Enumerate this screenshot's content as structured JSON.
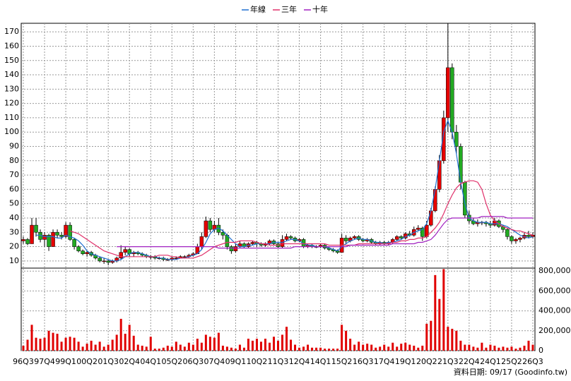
{
  "chart_data": {
    "type": "candlestick",
    "legend": "top",
    "grid": true,
    "footer": "資料日期: 09/17 (Goodinfo.tw)",
    "up_color": "#e60000",
    "down_color": "#22aa22",
    "categories": [
      "96Q3",
      null,
      null,
      null,
      null,
      "97Q4",
      null,
      null,
      null,
      null,
      "99Q1",
      null,
      null,
      null,
      null,
      "00Q2",
      null,
      null,
      null,
      null,
      "01Q3",
      null,
      null,
      null,
      null,
      "02Q4",
      null,
      null,
      null,
      null,
      "04Q1",
      null,
      null,
      null,
      null,
      "05Q2",
      null,
      null,
      null,
      null,
      "06Q3",
      null,
      null,
      null,
      null,
      "07Q4",
      null,
      null,
      null,
      null,
      "09Q1",
      null,
      null,
      null,
      null,
      "10Q2",
      null,
      null,
      null,
      null,
      "11Q3",
      null,
      null,
      null,
      null,
      "12Q4",
      null,
      null,
      null,
      null,
      "14Q1",
      null,
      null,
      null,
      null,
      "15Q2",
      null,
      null,
      null,
      null,
      "16Q3",
      null,
      null,
      null,
      null,
      "17Q4",
      null,
      null,
      null,
      null,
      "19Q1",
      null,
      null,
      null,
      null,
      "20Q2",
      null,
      null,
      null,
      null,
      "21Q3",
      null,
      null,
      null,
      null,
      "22Q4",
      null,
      null,
      null,
      null,
      "24Q1",
      null,
      null,
      null,
      null,
      "25Q2",
      null,
      null,
      null,
      null,
      "26Q3"
    ],
    "candles": [
      [
        24,
        27,
        22,
        25
      ],
      [
        25,
        26,
        21,
        22
      ],
      [
        22,
        40,
        22,
        35
      ],
      [
        35,
        40,
        27,
        30
      ],
      [
        30,
        32,
        23,
        25
      ],
      [
        25,
        30,
        20,
        28
      ],
      [
        28,
        29,
        17,
        20
      ],
      [
        20,
        32,
        20,
        30
      ],
      [
        30,
        32,
        26,
        28
      ],
      [
        28,
        30,
        25,
        27
      ],
      [
        27,
        37,
        26,
        35
      ],
      [
        35,
        37,
        24,
        25
      ],
      [
        25,
        26,
        18,
        20
      ],
      [
        20,
        21,
        16,
        17
      ],
      [
        17,
        18,
        14,
        15
      ],
      [
        15,
        17,
        13,
        16
      ],
      [
        16,
        17,
        13,
        14
      ],
      [
        14,
        15,
        11,
        12
      ],
      [
        12,
        13,
        9,
        10
      ],
      [
        10,
        12,
        8,
        10
      ],
      [
        10,
        11,
        7,
        9
      ],
      [
        9,
        11,
        8,
        10
      ],
      [
        10,
        13,
        9,
        12
      ],
      [
        12,
        21,
        11,
        16
      ],
      [
        16,
        20,
        14,
        18
      ],
      [
        18,
        19,
        13,
        15
      ],
      [
        15,
        17,
        13,
        16
      ],
      [
        16,
        17,
        14,
        15
      ],
      [
        15,
        16,
        13,
        14
      ],
      [
        14,
        15,
        12,
        13
      ],
      [
        13,
        14,
        11,
        13
      ],
      [
        13,
        14,
        11,
        12
      ],
      [
        12,
        13,
        11,
        12
      ],
      [
        12,
        13,
        10,
        11
      ],
      [
        11,
        12,
        10,
        11
      ],
      [
        11,
        13,
        10,
        12
      ],
      [
        12,
        13,
        11,
        12
      ],
      [
        12,
        14,
        12,
        13
      ],
      [
        13,
        14,
        12,
        13
      ],
      [
        13,
        15,
        12,
        14
      ],
      [
        14,
        16,
        13,
        15
      ],
      [
        15,
        22,
        15,
        20
      ],
      [
        20,
        30,
        18,
        27
      ],
      [
        27,
        41,
        26,
        38
      ],
      [
        38,
        40,
        30,
        32
      ],
      [
        32,
        38,
        30,
        35
      ],
      [
        35,
        40,
        28,
        30
      ],
      [
        30,
        32,
        25,
        28
      ],
      [
        28,
        29,
        18,
        20
      ],
      [
        20,
        21,
        15,
        17
      ],
      [
        17,
        22,
        16,
        20
      ],
      [
        20,
        24,
        19,
        22
      ],
      [
        22,
        23,
        19,
        20
      ],
      [
        20,
        23,
        19,
        22
      ],
      [
        22,
        24,
        21,
        23
      ],
      [
        23,
        24,
        20,
        22
      ],
      [
        22,
        23,
        20,
        21
      ],
      [
        21,
        23,
        20,
        22
      ],
      [
        22,
        25,
        21,
        24
      ],
      [
        24,
        25,
        21,
        22
      ],
      [
        22,
        23,
        19,
        20
      ],
      [
        20,
        28,
        19,
        25
      ],
      [
        25,
        29,
        24,
        27
      ],
      [
        27,
        28,
        25,
        26
      ],
      [
        26,
        27,
        23,
        24
      ],
      [
        24,
        26,
        23,
        25
      ],
      [
        25,
        26,
        19,
        20
      ],
      [
        20,
        22,
        19,
        21
      ],
      [
        21,
        22,
        19,
        20
      ],
      [
        20,
        21,
        19,
        20
      ],
      [
        20,
        22,
        19,
        21
      ],
      [
        21,
        22,
        18,
        19
      ],
      [
        19,
        20,
        17,
        18
      ],
      [
        18,
        19,
        16,
        17
      ],
      [
        17,
        18,
        15,
        16
      ],
      [
        16,
        29,
        16,
        26
      ],
      [
        26,
        28,
        22,
        24
      ],
      [
        24,
        27,
        23,
        26
      ],
      [
        26,
        28,
        25,
        27
      ],
      [
        27,
        28,
        24,
        25
      ],
      [
        25,
        26,
        23,
        24
      ],
      [
        24,
        26,
        23,
        25
      ],
      [
        25,
        26,
        22,
        23
      ],
      [
        23,
        24,
        21,
        22
      ],
      [
        22,
        24,
        21,
        23
      ],
      [
        23,
        24,
        21,
        22
      ],
      [
        22,
        24,
        21,
        23
      ],
      [
        23,
        26,
        22,
        25
      ],
      [
        25,
        28,
        24,
        27
      ],
      [
        27,
        28,
        25,
        26
      ],
      [
        26,
        30,
        25,
        29
      ],
      [
        29,
        31,
        27,
        28
      ],
      [
        28,
        34,
        27,
        32
      ],
      [
        32,
        35,
        31,
        33
      ],
      [
        33,
        34,
        24,
        27
      ],
      [
        27,
        38,
        26,
        35
      ],
      [
        35,
        47,
        34,
        45
      ],
      [
        45,
        62,
        44,
        60
      ],
      [
        60,
        84,
        58,
        80
      ],
      [
        80,
        115,
        78,
        110
      ],
      [
        110,
        176,
        100,
        145
      ],
      [
        145,
        148,
        95,
        100
      ],
      [
        100,
        105,
        85,
        90
      ],
      [
        90,
        92,
        60,
        65
      ],
      [
        65,
        66,
        40,
        42
      ],
      [
        42,
        45,
        36,
        38
      ],
      [
        38,
        40,
        35,
        36
      ],
      [
        36,
        39,
        34,
        37
      ],
      [
        37,
        38,
        35,
        37
      ],
      [
        37,
        38,
        34,
        36
      ],
      [
        36,
        38,
        33,
        35
      ],
      [
        35,
        40,
        34,
        38
      ],
      [
        38,
        39,
        33,
        34
      ],
      [
        34,
        35,
        30,
        32
      ],
      [
        32,
        33,
        25,
        27
      ],
      [
        27,
        28,
        22,
        24
      ],
      [
        24,
        26,
        22,
        25
      ],
      [
        25,
        27,
        23,
        26
      ],
      [
        26,
        30,
        25,
        28
      ],
      [
        28,
        31,
        26,
        27
      ],
      [
        27,
        30,
        26,
        28
      ]
    ],
    "ylim": [
      5,
      176
    ],
    "yticks": [
      10,
      20,
      30,
      40,
      50,
      60,
      70,
      80,
      90,
      100,
      110,
      120,
      130,
      140,
      150,
      160,
      170
    ],
    "series": [
      {
        "name": "年線",
        "color": "#1f6fd0",
        "values": [
          null,
          null,
          null,
          28,
          28,
          27,
          27,
          27,
          26,
          26,
          28,
          27,
          26,
          24,
          21,
          17,
          15,
          14,
          13,
          12,
          11,
          10,
          10,
          11,
          13,
          15,
          16,
          16,
          15,
          14,
          13,
          13,
          12,
          12,
          11,
          11,
          11,
          12,
          12,
          13,
          14,
          15,
          18,
          23,
          29,
          32,
          33,
          31,
          28,
          25,
          22,
          20,
          20,
          21,
          21,
          22,
          22,
          22,
          22,
          23,
          23,
          23,
          24,
          25,
          25,
          24,
          22,
          21,
          21,
          20,
          20,
          20,
          19,
          18,
          17,
          20,
          22,
          24,
          25,
          26,
          25,
          25,
          24,
          23,
          23,
          22,
          23,
          23,
          24,
          25,
          27,
          28,
          30,
          31,
          32,
          36,
          45,
          60,
          80,
          100,
          108,
          100,
          85,
          65,
          50,
          40,
          38,
          37,
          37,
          37,
          36,
          36,
          36,
          35,
          34,
          32,
          30,
          28,
          27,
          26,
          27
        ]
      },
      {
        "name": "三年",
        "color": "#e0306a",
        "values": [
          null,
          null,
          null,
          null,
          null,
          null,
          null,
          null,
          null,
          null,
          null,
          31,
          30,
          29,
          27,
          25,
          23,
          21,
          19,
          17,
          16,
          15,
          14,
          13,
          13,
          13,
          13,
          13,
          13,
          13,
          13,
          13,
          14,
          14,
          14,
          13,
          13,
          12,
          12,
          12,
          12,
          13,
          14,
          16,
          18,
          20,
          21,
          22,
          23,
          23,
          23,
          24,
          24,
          24,
          24,
          23,
          22,
          22,
          21,
          21,
          21,
          22,
          22,
          22,
          22,
          22,
          22,
          22,
          22,
          22,
          22,
          22,
          21,
          21,
          21,
          21,
          21,
          21,
          21,
          22,
          22,
          22,
          22,
          22,
          22,
          22,
          22,
          23,
          23,
          24,
          24,
          25,
          25,
          26,
          26,
          27,
          30,
          33,
          37,
          43,
          50,
          56,
          61,
          64,
          65,
          66,
          66,
          65,
          60,
          50,
          42,
          38,
          36,
          34,
          33,
          32,
          31,
          31,
          30,
          29,
          28
        ]
      },
      {
        "name": "十年",
        "color": "#a020c0",
        "values": [
          null,
          null,
          null,
          null,
          null,
          null,
          null,
          null,
          null,
          null,
          null,
          null,
          null,
          null,
          null,
          null,
          null,
          null,
          null,
          null,
          null,
          null,
          20,
          20,
          20,
          20,
          20,
          20,
          20,
          20,
          20,
          20,
          20,
          20,
          20,
          20,
          20,
          20,
          20,
          20,
          20,
          20,
          20,
          20,
          20,
          20,
          19,
          19,
          19,
          19,
          19,
          19,
          19,
          19,
          19,
          19,
          19,
          19,
          19,
          19,
          19,
          19,
          19,
          19,
          20,
          20,
          20,
          20,
          20,
          20,
          20,
          20,
          20,
          20,
          20,
          20,
          20,
          21,
          21,
          21,
          21,
          21,
          21,
          21,
          21,
          21,
          21,
          22,
          22,
          22,
          22,
          22,
          22,
          23,
          23,
          24,
          25,
          28,
          32,
          36,
          39,
          40,
          40,
          40,
          40,
          40,
          40,
          40,
          41,
          41,
          41,
          41,
          41,
          41,
          40,
          40,
          40,
          40,
          40,
          40,
          40
        ]
      }
    ],
    "volume": {
      "color": "#e00000",
      "ylim": [
        0,
        830000
      ],
      "yticks": [
        0,
        {
          "value": 200000,
          "label": "200,000"
        },
        {
          "value": 400000,
          "label": "400,000"
        },
        {
          "value": 600000,
          "label": "600,000"
        },
        {
          "value": 800000,
          "label": "800,000"
        }
      ],
      "values": [
        50000,
        110000,
        260000,
        130000,
        120000,
        130000,
        200000,
        180000,
        170000,
        90000,
        130000,
        140000,
        130000,
        90000,
        40000,
        70000,
        100000,
        60000,
        90000,
        40000,
        60000,
        110000,
        160000,
        320000,
        170000,
        260000,
        150000,
        60000,
        50000,
        40000,
        140000,
        20000,
        20000,
        30000,
        50000,
        40000,
        90000,
        60000,
        40000,
        80000,
        60000,
        120000,
        80000,
        160000,
        140000,
        130000,
        180000,
        50000,
        40000,
        30000,
        20000,
        60000,
        30000,
        120000,
        100000,
        120000,
        90000,
        120000,
        80000,
        140000,
        100000,
        160000,
        240000,
        110000,
        60000,
        30000,
        40000,
        60000,
        30000,
        30000,
        30000,
        20000,
        20000,
        20000,
        20000,
        260000,
        200000,
        120000,
        60000,
        90000,
        60000,
        70000,
        60000,
        30000,
        40000,
        60000,
        40000,
        80000,
        40000,
        70000,
        80000,
        60000,
        50000,
        30000,
        50000,
        270000,
        300000,
        760000,
        520000,
        820000,
        240000,
        220000,
        200000,
        100000,
        60000,
        60000,
        40000,
        30000,
        80000,
        30000,
        60000,
        50000,
        30000,
        40000,
        30000,
        40000,
        20000,
        30000,
        50000,
        100000,
        60000
      ]
    }
  }
}
